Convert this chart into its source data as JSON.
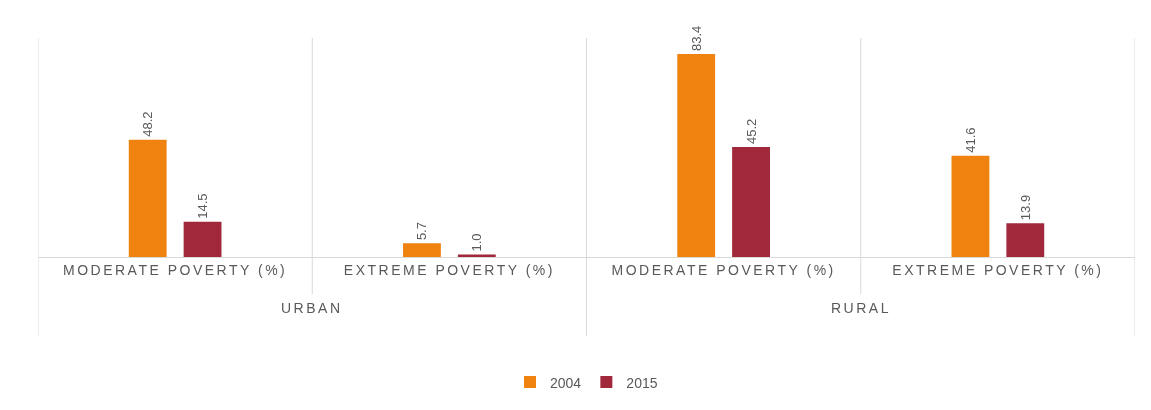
{
  "chart_data": {
    "type": "bar",
    "categories": [
      "MODERATE POVERTY (%)",
      "EXTREME POVERTY (%)",
      "MODERATE POVERTY (%)",
      "EXTREME POVERTY (%)"
    ],
    "series": [
      {
        "name": "2004",
        "color": "#f0820f",
        "values": [
          48.2,
          5.7,
          83.4,
          41.6
        ],
        "value_labels": [
          "48.2",
          "5.7",
          "83.4",
          "41.6"
        ]
      },
      {
        "name": "2015",
        "color": "#a0283a",
        "values": [
          14.5,
          1.0,
          45.2,
          13.9
        ],
        "value_labels": [
          "14.5",
          "1.0",
          "45.2",
          "13.9"
        ]
      }
    ],
    "annotations": [
      "URBAN",
      "RURAL"
    ],
    "ylim": [
      0,
      90
    ],
    "grid": false,
    "legend": "bottom"
  }
}
